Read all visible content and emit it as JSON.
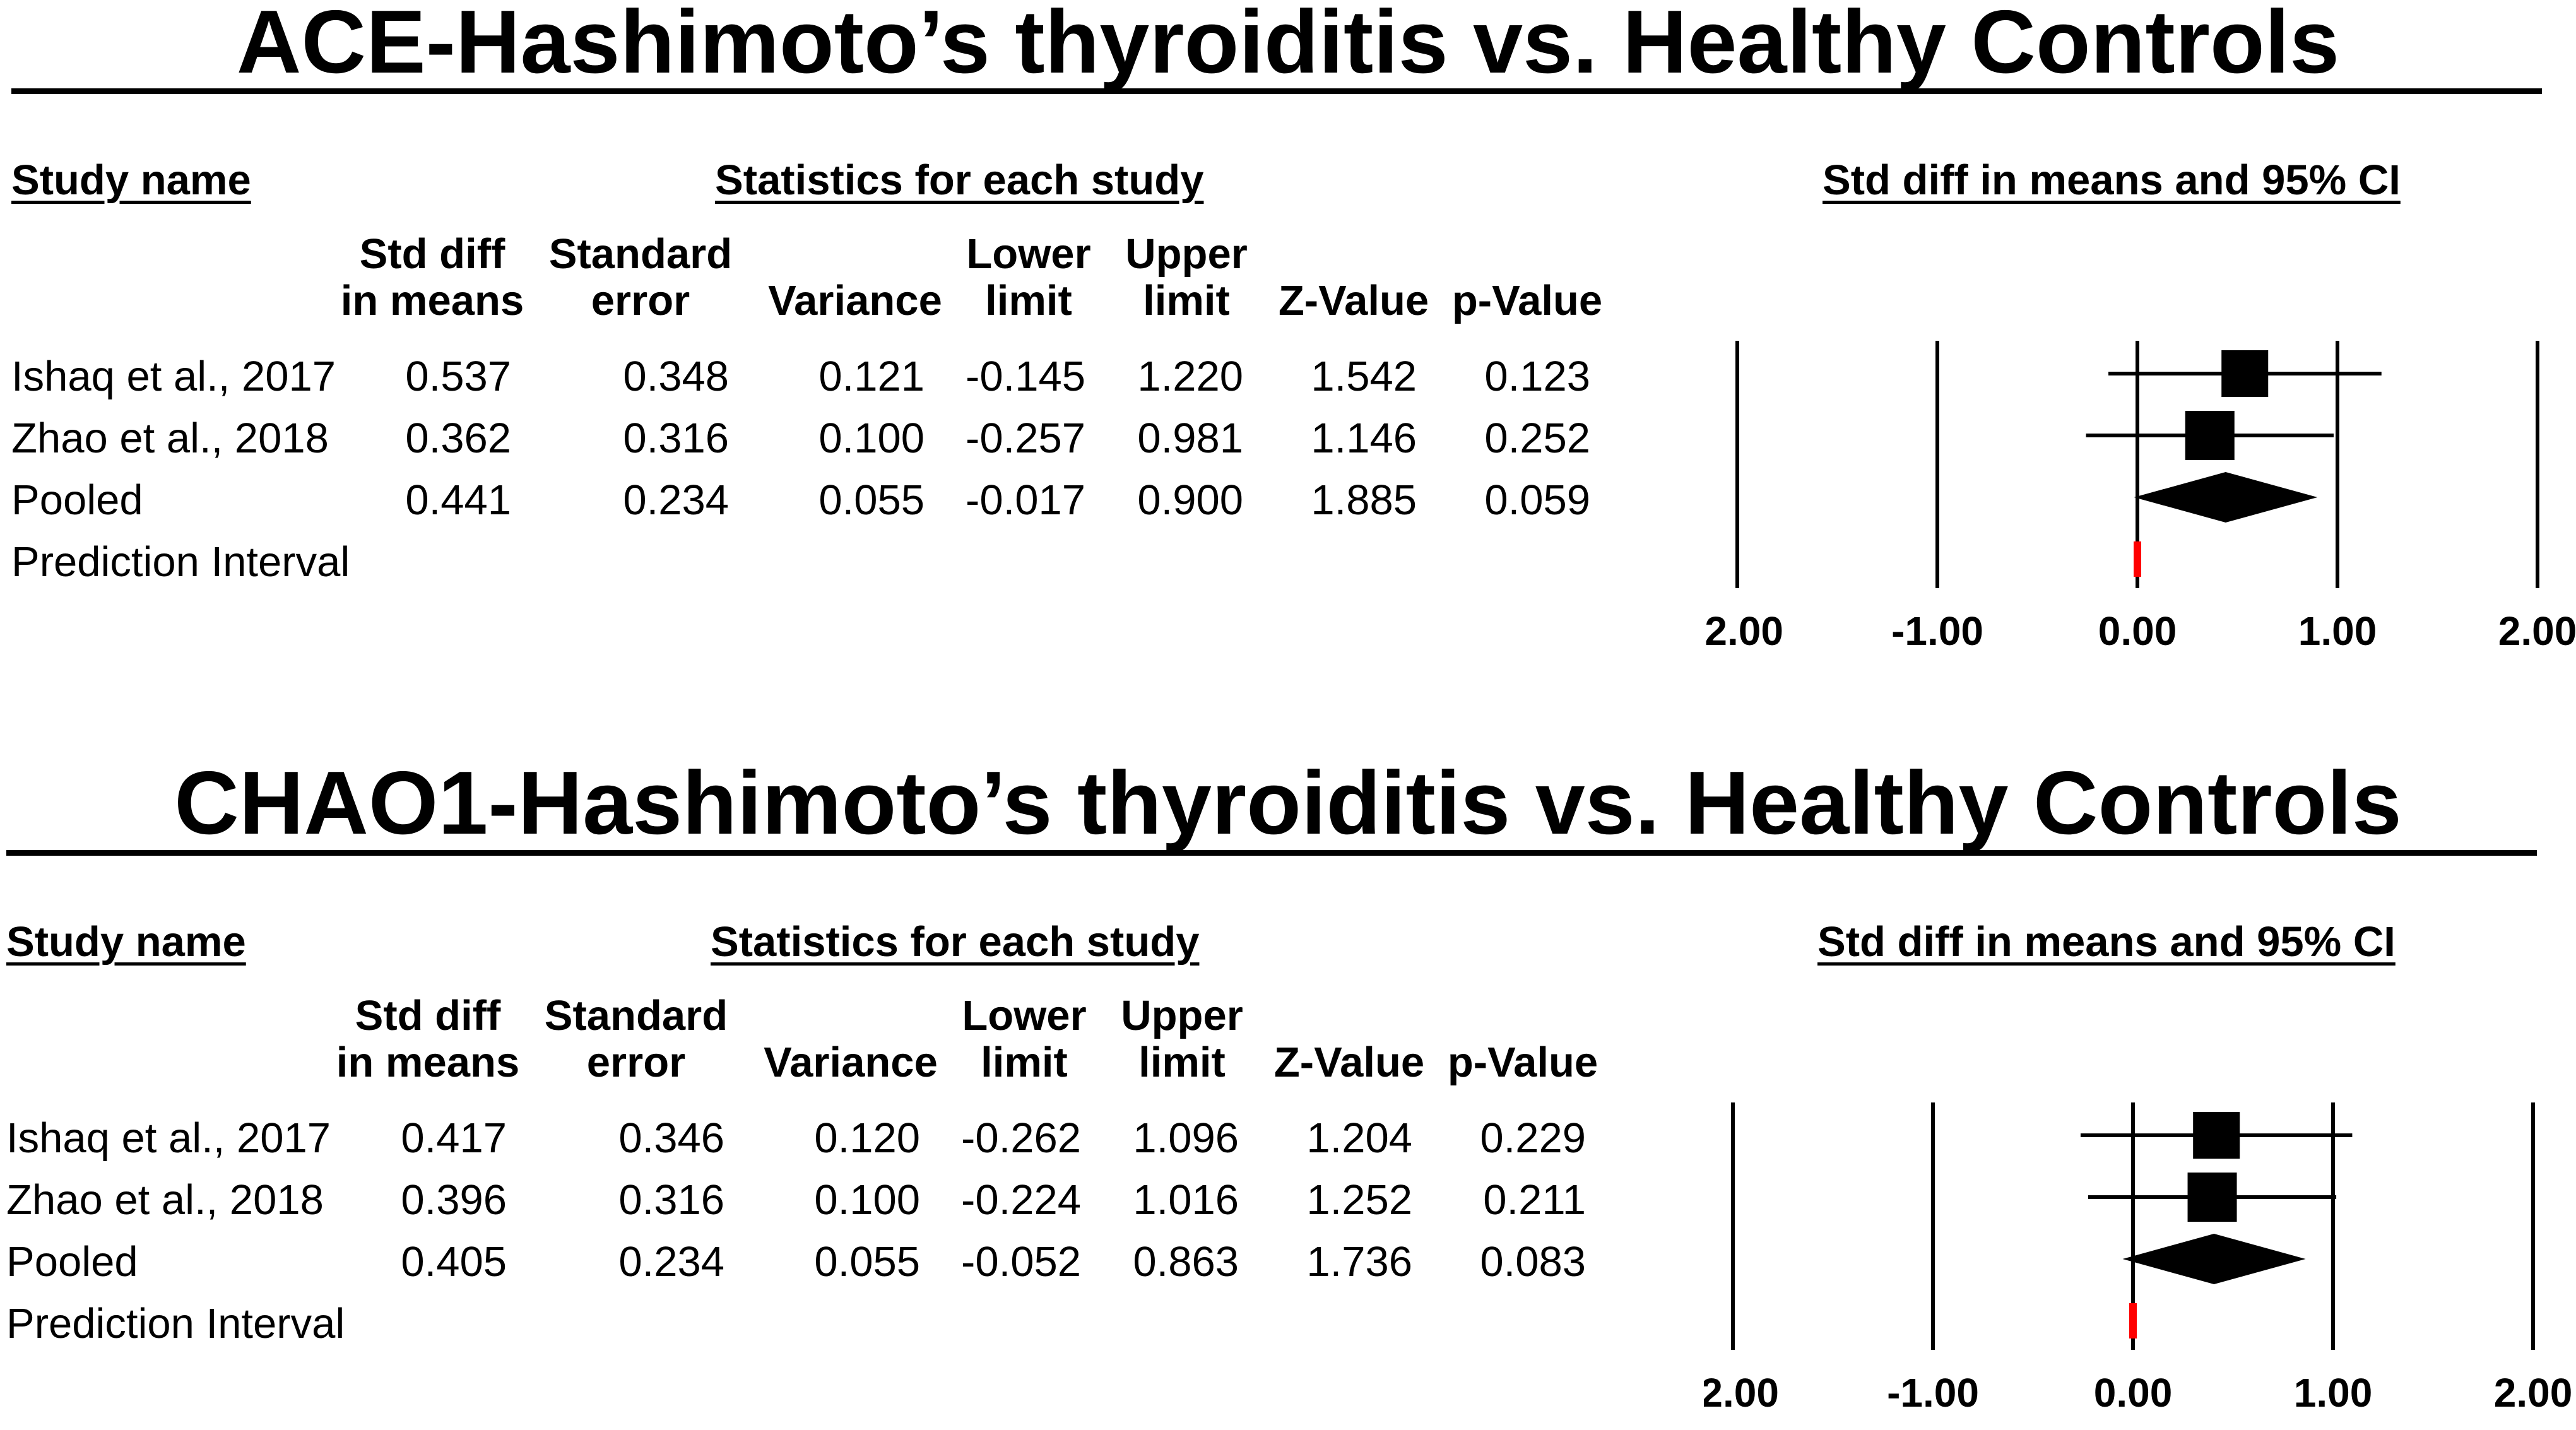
{
  "chart_data": [
    {
      "type": "forest",
      "title": "ACE-Hashimoto’s thyroiditis vs. Healthy Controls",
      "study_col_header": "Study name",
      "stats_header": "Statistics for each study",
      "plot_header": "Std diff in means and 95% CI",
      "columns": [
        {
          "l1": "Std diff",
          "l2": "in means"
        },
        {
          "l1": "Standard",
          "l2": "error"
        },
        {
          "l1": "",
          "l2": "Variance"
        },
        {
          "l1": "Lower",
          "l2": "limit"
        },
        {
          "l1": "Upper",
          "l2": "limit"
        },
        {
          "l1": "",
          "l2": "Z-Value"
        },
        {
          "l1": "",
          "l2": "p-Value"
        }
      ],
      "rows": [
        {
          "study": "Ishaq et al., 2017",
          "smd": "0.537",
          "se": "0.348",
          "var": "0.121",
          "lower": "-0.145",
          "upper": "1.220",
          "z": "1.542",
          "p": "0.123"
        },
        {
          "study": "Zhao et al., 2018",
          "smd": "0.362",
          "se": "0.316",
          "var": "0.100",
          "lower": "-0.257",
          "upper": "0.981",
          "z": "1.146",
          "p": "0.252"
        },
        {
          "study": "Pooled",
          "smd": "0.441",
          "se": "0.234",
          "var": "0.055",
          "lower": "-0.017",
          "upper": "0.900",
          "z": "1.885",
          "p": "0.059"
        },
        {
          "study": "Prediction Interval",
          "smd": "",
          "se": "",
          "var": "",
          "lower": "",
          "upper": "",
          "z": "",
          "p": ""
        }
      ],
      "plot": {
        "studies": [
          {
            "point": 0.537,
            "lower": -0.145,
            "upper": 1.22,
            "weight": 0.45
          },
          {
            "point": 0.362,
            "lower": -0.257,
            "upper": 0.981,
            "weight": 0.55
          }
        ],
        "pooled": {
          "point": 0.441,
          "lower": -0.017,
          "upper": 0.9
        },
        "prediction_interval": {
          "lower": 0.0,
          "upper": 0.0,
          "color": "#ff0000"
        },
        "xlim": [
          -2,
          2
        ],
        "ticks": [
          "-2.00",
          "-1.00",
          "0.00",
          "1.00",
          "2.00"
        ],
        "tick_values": [
          -2,
          -1,
          0,
          1,
          2
        ]
      }
    },
    {
      "type": "forest",
      "title": "CHAO1-Hashimoto’s thyroiditis vs. Healthy Controls",
      "study_col_header": "Study name",
      "stats_header": "Statistics for each study",
      "plot_header": "Std diff in means and 95% CI",
      "columns": [
        {
          "l1": "Std diff",
          "l2": "in means"
        },
        {
          "l1": "Standard",
          "l2": "error"
        },
        {
          "l1": "",
          "l2": "Variance"
        },
        {
          "l1": "Lower",
          "l2": "limit"
        },
        {
          "l1": "Upper",
          "l2": "limit"
        },
        {
          "l1": "",
          "l2": "Z-Value"
        },
        {
          "l1": "",
          "l2": "p-Value"
        }
      ],
      "rows": [
        {
          "study": "Ishaq et al., 2017",
          "smd": "0.417",
          "se": "0.346",
          "var": "0.120",
          "lower": "-0.262",
          "upper": "1.096",
          "z": "1.204",
          "p": "0.229"
        },
        {
          "study": "Zhao et al., 2018",
          "smd": "0.396",
          "se": "0.316",
          "var": "0.100",
          "lower": "-0.224",
          "upper": "1.016",
          "z": "1.252",
          "p": "0.211"
        },
        {
          "study": "Pooled",
          "smd": "0.405",
          "se": "0.234",
          "var": "0.055",
          "lower": "-0.052",
          "upper": "0.863",
          "z": "1.736",
          "p": "0.083"
        },
        {
          "study": "Prediction Interval",
          "smd": "",
          "se": "",
          "var": "",
          "lower": "",
          "upper": "",
          "z": "",
          "p": ""
        }
      ],
      "plot": {
        "studies": [
          {
            "point": 0.417,
            "lower": -0.262,
            "upper": 1.096,
            "weight": 0.45
          },
          {
            "point": 0.396,
            "lower": -0.224,
            "upper": 1.016,
            "weight": 0.55
          }
        ],
        "pooled": {
          "point": 0.405,
          "lower": -0.052,
          "upper": 0.863
        },
        "prediction_interval": {
          "lower": 0.0,
          "upper": 0.0,
          "color": "#ff0000"
        },
        "xlim": [
          -2,
          2
        ],
        "ticks": [
          "-2.00",
          "-1.00",
          "0.00",
          "1.00",
          "2.00"
        ],
        "tick_values": [
          -2,
          -1,
          0,
          1,
          2
        ]
      }
    }
  ]
}
